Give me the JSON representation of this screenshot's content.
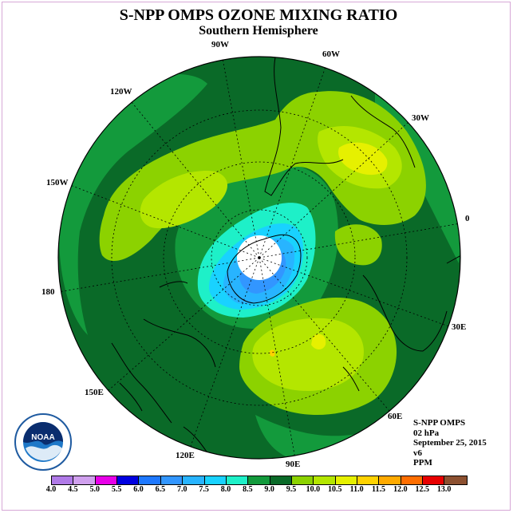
{
  "title": "S-NPP OMPS OZONE MIXING RATIO",
  "subtitle": "Southern Hemisphere",
  "longitude_labels": [
    "90W",
    "60W",
    "30W",
    "0",
    "30E",
    "60E",
    "90E",
    "120E",
    "150E",
    "180",
    "150W",
    "120W"
  ],
  "info": {
    "instrument": "S-NPP OMPS",
    "level": "02 hPa",
    "date": "September 25, 2015",
    "version": "v6",
    "units": "PPM"
  },
  "logo": {
    "text": "NOAA"
  },
  "colorbar": {
    "ticks": [
      "4.0",
      "4.5",
      "5.0",
      "5.5",
      "6.0",
      "6.5",
      "7.0",
      "7.5",
      "8.0",
      "8.5",
      "9.0",
      "9.5",
      "10.0",
      "10.5",
      "11.0",
      "11.5",
      "12.0",
      "12.5",
      "13.0"
    ],
    "colors": [
      "#b07ae8",
      "#d0a0ee",
      "#e800e8",
      "#0000e0",
      "#1e78ff",
      "#3296ff",
      "#28b4ff",
      "#19d2ff",
      "#1ef0c8",
      "#139a3c",
      "#0a6a28",
      "#8cd200",
      "#b4e600",
      "#e6f000",
      "#ffd200",
      "#ffaa00",
      "#ff6e00",
      "#e80000",
      "#8c5030"
    ]
  }
}
